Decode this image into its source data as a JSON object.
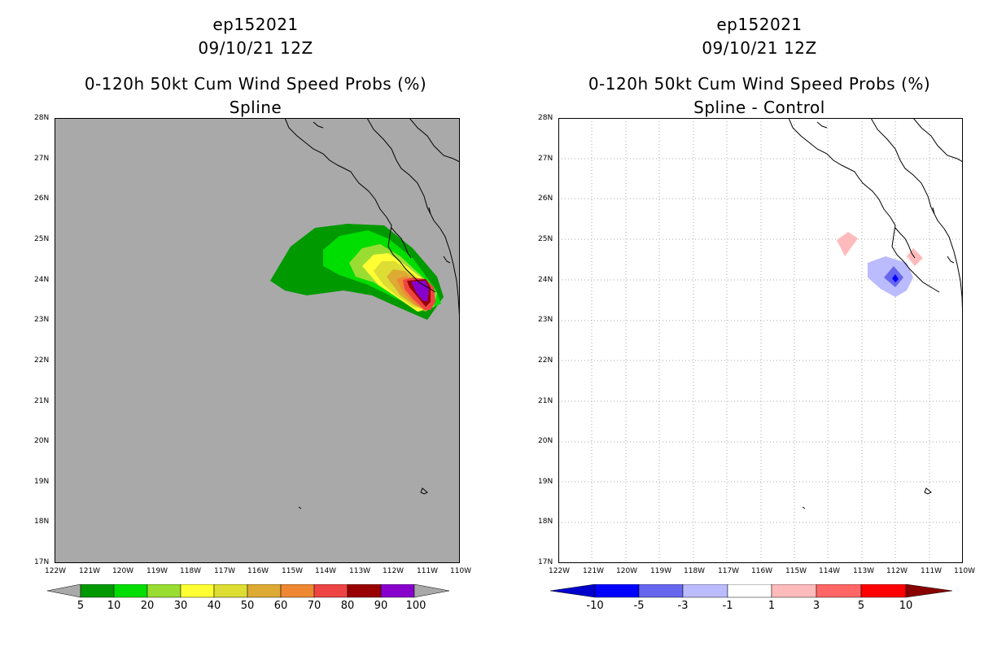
{
  "left_panel": {
    "title_line1": "ep152021",
    "title_line2": "09/10/21 12Z",
    "title_line3": "0-120h 50kt Cum Wind Speed Probs (%)",
    "title_line4": "Spline",
    "background": "#a9a9a9",
    "legend": {
      "colors": [
        "#009900",
        "#00dd00",
        "#99dd33",
        "#ffff33",
        "#dddd33",
        "#ddaa33",
        "#ee8833",
        "#ee4444",
        "#990000",
        "#8800cc"
      ],
      "labels": [
        "5",
        "10",
        "20",
        "30",
        "40",
        "50",
        "60",
        "70",
        "80",
        "90",
        "100"
      ]
    }
  },
  "right_panel": {
    "title_line1": "ep152021",
    "title_line2": "09/10/21 12Z",
    "title_line3": "0-120h 50kt Cum Wind Speed Probs (%)",
    "title_line4": "Spline - Control",
    "background": "#ffffff",
    "legend": {
      "colors": [
        "#0000cc",
        "#0000ff",
        "#6666ee",
        "#bbbbff",
        "#ffffff",
        "#ffbbbb",
        "#ff6666",
        "#ff0000",
        "#880000"
      ],
      "labels": [
        "-10",
        "-5",
        "-3",
        "-1",
        "1",
        "3",
        "5",
        "10"
      ]
    }
  },
  "axes": {
    "lon_labels": [
      "122W",
      "121W",
      "120W",
      "119W",
      "118W",
      "117W",
      "116W",
      "115W",
      "114W",
      "113W",
      "112W",
      "111W",
      "110W"
    ],
    "lat_labels": [
      "28N",
      "27N",
      "26N",
      "25N",
      "24N",
      "23N",
      "22N",
      "21N",
      "20N",
      "19N",
      "18N",
      "17N"
    ]
  }
}
